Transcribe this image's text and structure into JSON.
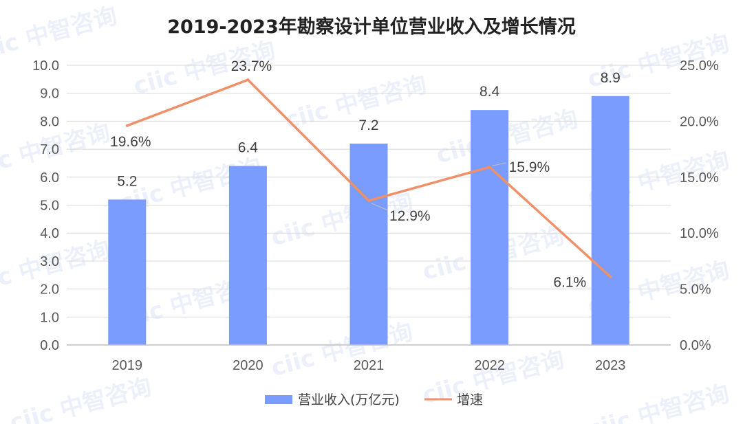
{
  "chart_data": {
    "type": "bar",
    "title": "2019-2023年勘察设计单位营业收入及增长情况",
    "categories": [
      "2019",
      "2020",
      "2021",
      "2022",
      "2023"
    ],
    "series": [
      {
        "name": "营业收入(万亿元)",
        "type": "bar",
        "axis": "left",
        "color": "#7b9cff",
        "values": [
          5.2,
          6.4,
          7.2,
          8.4,
          8.9
        ],
        "labels": [
          "5.2",
          "6.4",
          "7.2",
          "8.4",
          "8.9"
        ]
      },
      {
        "name": "增速",
        "type": "line",
        "axis": "right",
        "color": "#f0906a",
        "values": [
          19.6,
          23.7,
          12.9,
          15.9,
          6.1
        ],
        "labels": [
          "19.6%",
          "23.7%",
          "12.9%",
          "15.9%",
          "6.1%"
        ]
      }
    ],
    "y_left": {
      "range": [
        0,
        10
      ],
      "ticks": [
        "0.0",
        "1.0",
        "2.0",
        "3.0",
        "4.0",
        "5.0",
        "6.0",
        "7.0",
        "8.0",
        "9.0",
        "10.0"
      ]
    },
    "y_right": {
      "range": [
        0,
        25
      ],
      "ticks": [
        "0.0%",
        "5.0%",
        "10.0%",
        "15.0%",
        "20.0%",
        "25.0%"
      ]
    },
    "grid": true,
    "legend_position": "bottom"
  },
  "watermark": "ciic 中智咨询"
}
